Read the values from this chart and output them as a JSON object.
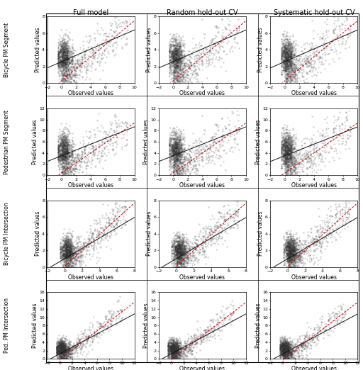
{
  "col_titles": [
    "Full model",
    "Random hold-out CV",
    "Systematic hold-out CV"
  ],
  "row_labels": [
    "Bicycle PM Segment",
    "Pedestrian PM Segment",
    "Bicycle PM Intersection",
    "Ped. PM Intersection"
  ],
  "rows": [
    {
      "xlim": [
        -2,
        10
      ],
      "ylim": [
        0,
        8
      ],
      "xticks": [
        -2,
        0,
        2,
        4,
        6,
        8,
        10
      ],
      "yticks": [
        0,
        2,
        4,
        6,
        8
      ],
      "reg_slope": 0.38,
      "reg_intercept": 2.6,
      "diag_slope": 0.72,
      "diag_intercept": 0.3,
      "x_cluster_mean": 0.3,
      "x_cluster_std": 0.5,
      "y_cluster_mean": 3.2,
      "y_cluster_std": 1.0,
      "x_spread_max": 9.0,
      "n_cluster": 900,
      "n_spread": 500
    },
    {
      "xlim": [
        -2,
        10
      ],
      "ylim": [
        0,
        12
      ],
      "xticks": [
        -2,
        0,
        2,
        4,
        6,
        8,
        10
      ],
      "yticks": [
        0,
        2,
        4,
        6,
        8,
        10,
        12
      ],
      "reg_slope": 0.52,
      "reg_intercept": 3.5,
      "diag_slope": 0.9,
      "diag_intercept": 0.4,
      "x_cluster_mean": 0.3,
      "x_cluster_std": 0.5,
      "y_cluster_mean": 4.5,
      "y_cluster_std": 1.5,
      "x_spread_max": 9.0,
      "n_cluster": 900,
      "n_spread": 500
    },
    {
      "xlim": [
        -2,
        8
      ],
      "ylim": [
        0,
        8
      ],
      "xticks": [
        -2,
        0,
        2,
        4,
        6,
        8
      ],
      "yticks": [
        0,
        2,
        4,
        6,
        8
      ],
      "reg_slope": 0.62,
      "reg_intercept": 1.0,
      "diag_slope": 0.95,
      "diag_intercept": 0.1,
      "x_cluster_mean": 0.3,
      "x_cluster_std": 0.4,
      "y_cluster_mean": 2.0,
      "y_cluster_std": 0.8,
      "x_spread_max": 7.0,
      "n_cluster": 900,
      "n_spread": 500
    },
    {
      "xlim": [
        -2,
        12
      ],
      "ylim": [
        0,
        16
      ],
      "xticks": [
        -2,
        0,
        2,
        4,
        6,
        8,
        10,
        12
      ],
      "yticks": [
        0,
        2,
        4,
        6,
        8,
        10,
        12,
        14,
        16
      ],
      "reg_slope": 0.8,
      "reg_intercept": 1.2,
      "diag_slope": 1.15,
      "diag_intercept": -0.2,
      "x_cluster_mean": 0.3,
      "x_cluster_std": 0.5,
      "y_cluster_mean": 2.5,
      "y_cluster_std": 1.0,
      "x_spread_max": 10.0,
      "n_cluster": 900,
      "n_spread": 500
    }
  ],
  "scatter_color": "#333333",
  "scatter_alpha": 0.25,
  "scatter_size": 2.5,
  "reg_line_color": "#111111",
  "diag_line_color": "#cc0000",
  "xlabel": "Observed values",
  "ylabel": "Predicted values",
  "title_fontsize": 7,
  "label_fontsize": 5.5,
  "tick_fontsize": 4.5,
  "row_label_fontsize": 5.5
}
